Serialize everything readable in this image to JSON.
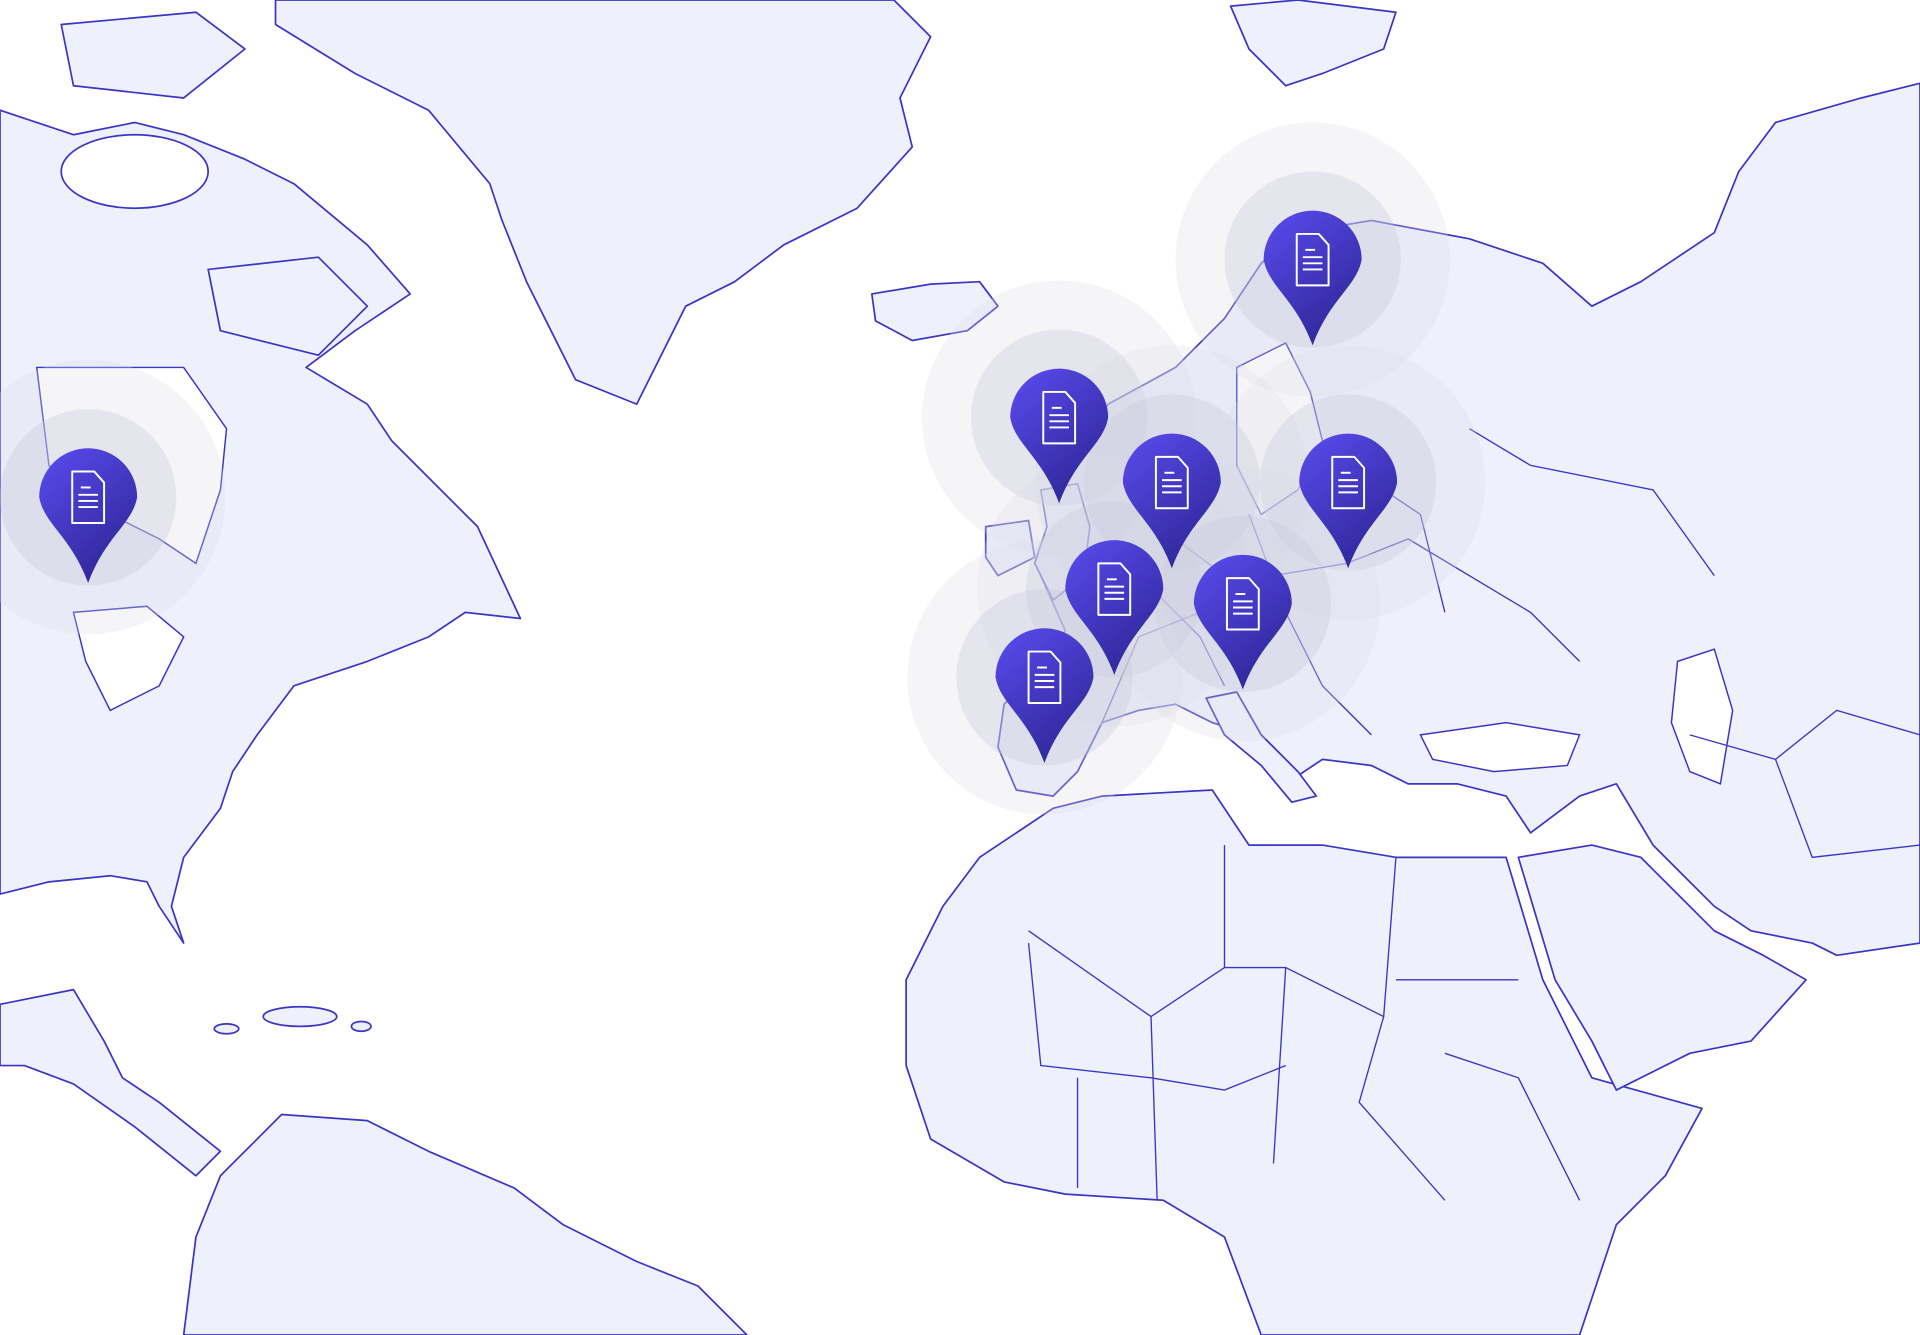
{
  "map": {
    "land_color": "#eef0fb",
    "border_color": "#3b35c7",
    "pin_gradient": [
      "#5a4cf0",
      "#30289a"
    ],
    "pins": [
      {
        "icon": "document-icon"
      },
      {
        "icon": "document-icon"
      },
      {
        "icon": "document-icon"
      },
      {
        "icon": "document-icon"
      },
      {
        "icon": "document-icon"
      },
      {
        "icon": "document-icon"
      },
      {
        "icon": "document-icon"
      },
      {
        "icon": "document-icon"
      }
    ]
  }
}
